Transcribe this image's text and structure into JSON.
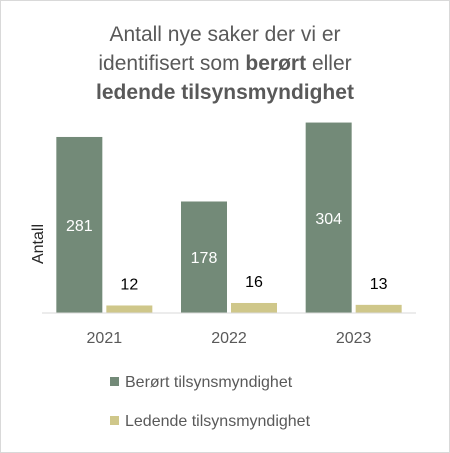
{
  "title": {
    "line1": "Antall nye saker der vi er",
    "line2_pre": "identifisert som ",
    "line2_bold": "berørt",
    "line2_post": " eller",
    "line3_bold": "ledende tilsynsmyndighet"
  },
  "colors": {
    "series1": "#738a78",
    "series2": "#cfc78a",
    "axis": "#d9d9d9",
    "text": "#262626"
  },
  "chart_data": {
    "type": "bar",
    "title": "Antall nye saker der vi er identifisert som berørt eller ledende tilsynsmyndighet",
    "ylabel": "Antall",
    "xlabel": "",
    "categories": [
      "2021",
      "2022",
      "2023"
    ],
    "series": [
      {
        "name": "Berørt tilsynsmyndighet",
        "values": [
          281,
          178,
          304
        ]
      },
      {
        "name": "Ledende tilsynsmyndighet",
        "values": [
          12,
          16,
          13
        ]
      }
    ],
    "ylim": [
      0,
      340
    ],
    "grid": false,
    "legend": "bottom"
  }
}
